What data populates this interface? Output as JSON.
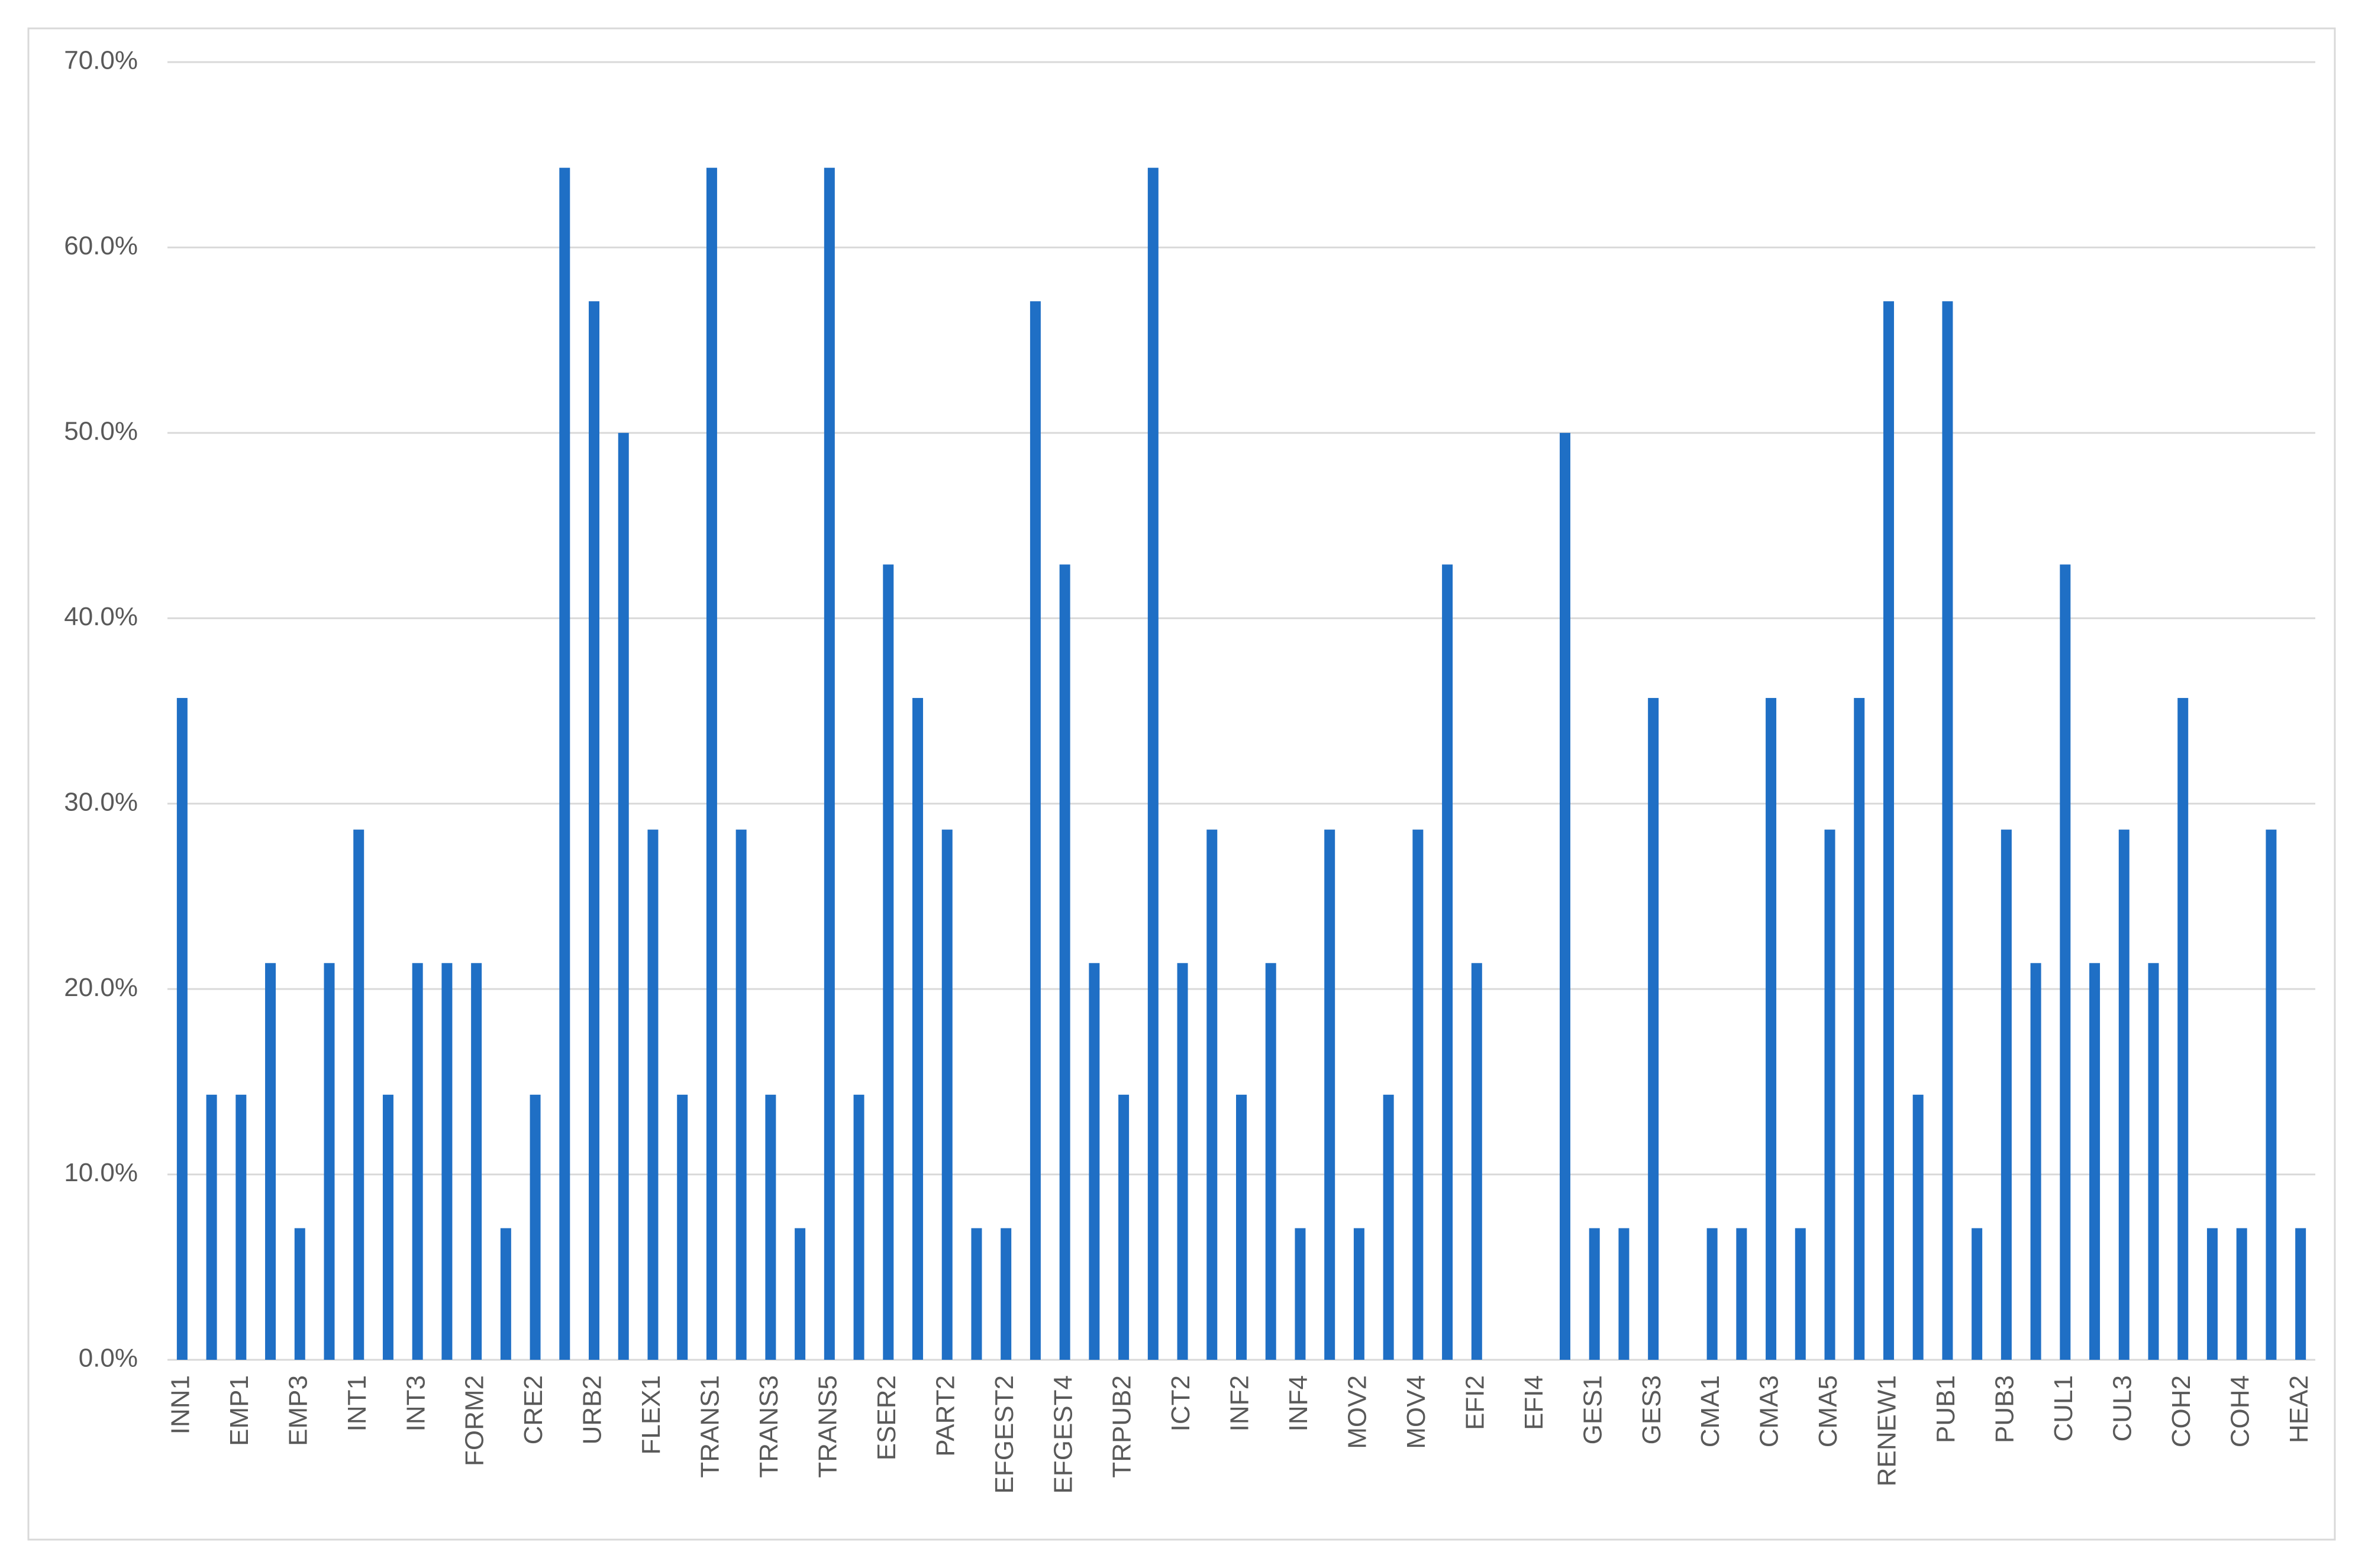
{
  "chart_data": {
    "type": "bar",
    "categories": [
      "INN1",
      null,
      "EMP1",
      null,
      "EMP3",
      null,
      "INT1",
      null,
      "INT3",
      null,
      "FORM2",
      null,
      "CRE2",
      null,
      "URB2",
      null,
      "FLEX1",
      null,
      "TRANS1",
      null,
      "TRANS3",
      null,
      "TRANS5",
      null,
      "ESER2",
      null,
      "PART2",
      null,
      "EFGEST2",
      null,
      "EFGEST4",
      null,
      "TRPUB2",
      null,
      "ICT2",
      null,
      "INF2",
      null,
      "INF4",
      null,
      "MOV2",
      null,
      "MOV4",
      null,
      "EFI2",
      null,
      "EFI4",
      null,
      "GES1",
      null,
      "GES3",
      null,
      "CMA1",
      null,
      "CMA3",
      null,
      "CMA5",
      null,
      "RENEW1",
      null,
      "PUB1",
      null,
      "PUB3",
      null,
      "CUL1",
      null,
      "CUL3",
      null,
      "COH2",
      null,
      "COH4",
      null,
      "HEA2"
    ],
    "values": [
      35.7,
      14.3,
      14.3,
      21.4,
      7.1,
      21.4,
      28.6,
      14.3,
      21.4,
      21.4,
      21.4,
      7.1,
      14.3,
      64.3,
      57.1,
      50.0,
      28.6,
      14.3,
      64.3,
      28.6,
      14.3,
      7.1,
      64.3,
      14.3,
      42.9,
      35.7,
      28.6,
      7.1,
      7.1,
      57.1,
      42.9,
      21.4,
      14.3,
      64.3,
      21.4,
      28.6,
      14.3,
      21.4,
      7.1,
      28.6,
      7.1,
      14.3,
      28.6,
      42.9,
      21.4,
      0,
      0,
      50.0,
      7.1,
      7.1,
      35.7,
      0,
      7.1,
      7.1,
      35.7,
      7.1,
      28.6,
      35.7,
      57.1,
      14.3,
      57.1,
      7.1,
      28.6,
      21.4,
      42.9,
      21.4,
      28.6,
      21.4,
      35.7,
      7.1,
      7.1,
      28.6,
      7.1
    ],
    "color": "#1f6fc5",
    "ylim": [
      0,
      70
    ],
    "yticks": [
      {
        "value": 0,
        "label": "0.0%"
      },
      {
        "value": 10,
        "label": "10.0%"
      },
      {
        "value": 20,
        "label": "20.0%"
      },
      {
        "value": 30,
        "label": "30.0%"
      },
      {
        "value": 40,
        "label": "40.0%"
      },
      {
        "value": 50,
        "label": "50.0%"
      },
      {
        "value": 60,
        "label": "60.0%"
      },
      {
        "value": 70,
        "label": "70.0%"
      }
    ],
    "grid": true
  }
}
